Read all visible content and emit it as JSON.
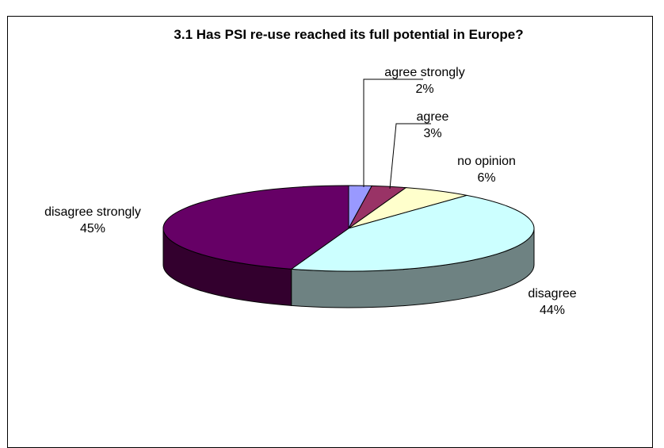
{
  "chart_data": {
    "type": "pie",
    "title": "3.1 Has PSI re-use reached its full potential in Europe?",
    "three_d": true,
    "slices": [
      {
        "label": "agree strongly",
        "value": 2,
        "value_text": "2%",
        "color": "#9999ff",
        "side": "#5c5c99"
      },
      {
        "label": "agree",
        "value": 3,
        "value_text": "3%",
        "color": "#993366",
        "side": "#5c1f3d"
      },
      {
        "label": "no opinion",
        "value": 6,
        "value_text": "6%",
        "color": "#ffffcc",
        "side": "#99997a"
      },
      {
        "label": "disagree",
        "value": 44,
        "value_text": "44%",
        "color": "#ccffff",
        "side": "#6e8282"
      },
      {
        "label": "disagree strongly",
        "value": 45,
        "value_text": "45%",
        "color": "#660066",
        "side": "#33002e"
      }
    ]
  }
}
